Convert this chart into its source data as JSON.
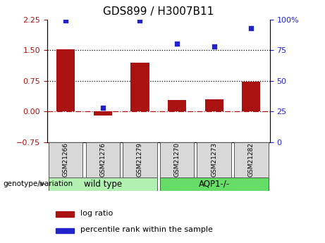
{
  "title": "GDS899 / H3007B11",
  "categories": [
    "GSM21266",
    "GSM21276",
    "GSM21279",
    "GSM21270",
    "GSM21273",
    "GSM21282"
  ],
  "log_ratio": [
    1.52,
    -0.1,
    1.2,
    0.28,
    0.3,
    0.72
  ],
  "percentile_rank": [
    99,
    28,
    99,
    80,
    78,
    93
  ],
  "bar_color": "#aa1111",
  "dot_color": "#2222cc",
  "ylim_left": [
    -0.75,
    2.25
  ],
  "ylim_right": [
    0,
    100
  ],
  "yticks_left": [
    -0.75,
    0,
    0.75,
    1.5,
    2.25
  ],
  "yticks_right": [
    0,
    25,
    50,
    75,
    100
  ],
  "hlines": [
    0.75,
    1.5
  ],
  "group1_label": "wild type",
  "group2_label": "AQP1-/-",
  "group1_indices": [
    0,
    1,
    2
  ],
  "group2_indices": [
    3,
    4,
    5
  ],
  "bottom_label": "genotype/variation",
  "legend_bar_label": "log ratio",
  "legend_dot_label": "percentile rank within the sample",
  "bar_width": 0.5,
  "group1_bg": "#b2f0b2",
  "group2_bg": "#66dd66",
  "tick_bg": "#d8d8d8",
  "title_fontsize": 11,
  "axis_fontsize": 8,
  "label_fontsize": 8
}
